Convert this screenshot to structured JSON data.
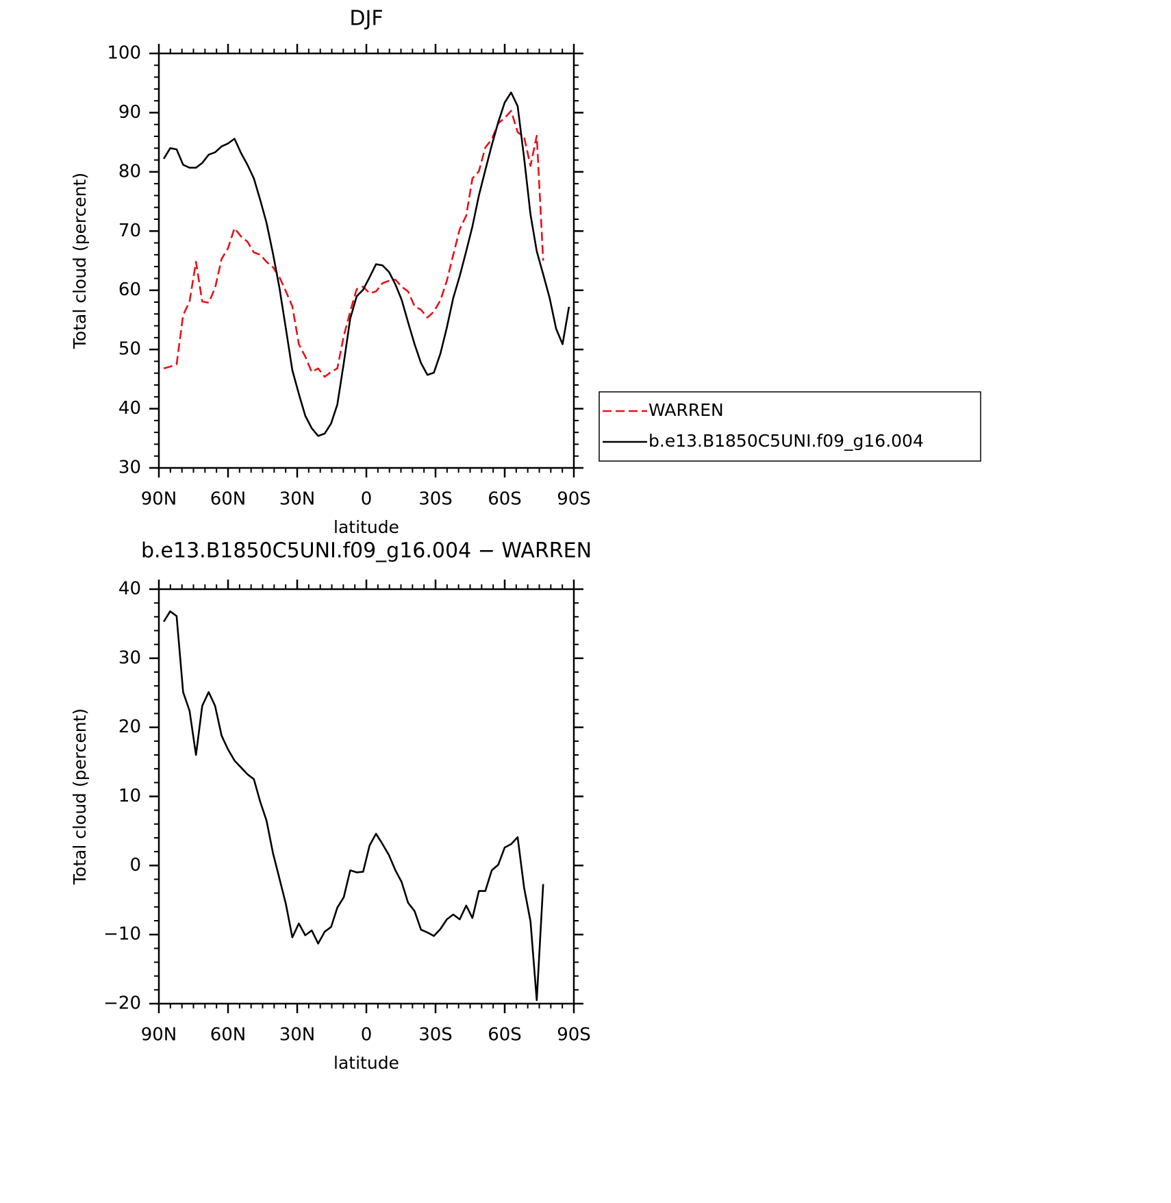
{
  "chart_data": [
    {
      "type": "line",
      "title": "DJF",
      "xlabel": "latitude",
      "ylabel": "Total cloud (percent)",
      "x": [
        87.9,
        85.1,
        82.3,
        79.5,
        76.7,
        73.9,
        71.2,
        68.4,
        65.6,
        62.8,
        60.0,
        57.2,
        54.4,
        51.6,
        48.8,
        46.0,
        43.3,
        40.5,
        37.7,
        34.9,
        32.1,
        29.3,
        26.5,
        23.7,
        20.9,
        18.1,
        15.3,
        12.6,
        9.8,
        7.0,
        4.2,
        1.4,
        -1.4,
        -4.2,
        -7.0,
        -9.8,
        -12.6,
        -15.3,
        -18.1,
        -20.9,
        -23.7,
        -26.5,
        -29.3,
        -32.1,
        -34.9,
        -37.7,
        -40.5,
        -43.3,
        -46.0,
        -48.8,
        -51.6,
        -54.4,
        -57.2,
        -60.0,
        -62.8,
        -65.6,
        -68.4,
        -71.2,
        -73.9,
        -76.7,
        -79.5,
        -82.3,
        -85.1,
        -87.9
      ],
      "xlim": [
        90,
        -90
      ],
      "xticks": [
        {
          "value": 90,
          "label": "90N"
        },
        {
          "value": 60,
          "label": "60N"
        },
        {
          "value": 30,
          "label": "30N"
        },
        0,
        {
          "value": -30,
          "label": "30S"
        },
        {
          "value": -60,
          "label": "60S"
        },
        {
          "value": -90,
          "label": "90S"
        }
      ],
      "ylim": [
        30,
        100
      ],
      "yticks": [
        30,
        40,
        50,
        60,
        70,
        80,
        90,
        100
      ],
      "legend": "right",
      "series": [
        {
          "name": "WARREN",
          "color": "#e8101a",
          "dash": true,
          "values": [
            46.8,
            47.1,
            47.5,
            55.8,
            58.1,
            64.8,
            58.1,
            57.9,
            60.4,
            65.3,
            67.1,
            70.5,
            69.1,
            68.2,
            66.4,
            66.0,
            64.8,
            63.9,
            62.2,
            59.8,
            57.3,
            50.9,
            48.8,
            46.2,
            46.8,
            45.4,
            46.2,
            46.8,
            52.3,
            56.4,
            60.2,
            60.6,
            59.5,
            59.8,
            61.2,
            61.6,
            61.8,
            60.6,
            59.8,
            57.3,
            56.7,
            55.4,
            56.4,
            58.3,
            61.6,
            66.0,
            70.3,
            72.6,
            78.9,
            80.1,
            84.1,
            85.5,
            88.2,
            89.1,
            90.3,
            86.7,
            85.9,
            81.0,
            86.1,
            65.0,
            null,
            null,
            null,
            null
          ]
        },
        {
          "name": "b.e13.B1850C5UNI.f09_g16.004",
          "color": "#000000",
          "dash": false,
          "values": [
            82.2,
            84.0,
            83.8,
            81.2,
            80.7,
            80.7,
            81.5,
            82.9,
            83.3,
            84.3,
            84.8,
            85.6,
            83.2,
            81.2,
            78.9,
            75.2,
            71.4,
            66.2,
            60.4,
            53.5,
            46.5,
            42.5,
            38.8,
            36.7,
            35.4,
            35.8,
            37.5,
            40.7,
            47.7,
            55.2,
            59.0,
            60.1,
            62.2,
            64.4,
            64.2,
            63.1,
            61.0,
            58.4,
            54.6,
            50.9,
            47.7,
            45.7,
            46.1,
            49.3,
            53.7,
            58.7,
            62.4,
            66.6,
            70.8,
            76.0,
            80.3,
            84.5,
            88.4,
            91.7,
            93.4,
            91.1,
            82.4,
            72.8,
            66.6,
            62.7,
            58.7,
            53.5,
            50.9,
            57.2
          ]
        }
      ]
    },
    {
      "type": "line",
      "title": "b.e13.B1850C5UNI.f09_g16.004 − WARREN",
      "xlabel": "latitude",
      "ylabel": "Total cloud (percent)",
      "x": [
        87.9,
        85.1,
        82.3,
        79.5,
        76.7,
        73.9,
        71.2,
        68.4,
        65.6,
        62.8,
        60.0,
        57.2,
        54.4,
        51.6,
        48.8,
        46.0,
        43.3,
        40.5,
        37.7,
        34.9,
        32.1,
        29.3,
        26.5,
        23.7,
        20.9,
        18.1,
        15.3,
        12.6,
        9.8,
        7.0,
        4.2,
        1.4,
        -1.4,
        -4.2,
        -7.0,
        -9.8,
        -12.6,
        -15.3,
        -18.1,
        -20.9,
        -23.7,
        -26.5,
        -29.3,
        -32.1,
        -34.9,
        -37.7,
        -40.5,
        -43.3,
        -46.0,
        -48.8,
        -51.6,
        -54.4,
        -57.2,
        -60.0,
        -62.8,
        -65.6,
        -68.4,
        -71.2,
        -73.9,
        -76.7
      ],
      "xlim": [
        90,
        -90
      ],
      "xticks": [
        {
          "value": 90,
          "label": "90N"
        },
        {
          "value": 60,
          "label": "60N"
        },
        {
          "value": 30,
          "label": "30N"
        },
        0,
        {
          "value": -30,
          "label": "30S"
        },
        {
          "value": -60,
          "label": "60S"
        },
        {
          "value": -90,
          "label": "90S"
        }
      ],
      "ylim": [
        -20,
        40
      ],
      "yticks": [
        {
          "value": -20,
          "label": "−20"
        },
        {
          "value": -10,
          "label": "−10"
        },
        0,
        10,
        20,
        30,
        40
      ],
      "series": [
        {
          "color": "#000000",
          "dash": false,
          "values": [
            35.3,
            36.8,
            36.1,
            25.1,
            22.4,
            16.0,
            23.1,
            25.1,
            23.1,
            18.8,
            16.8,
            15.2,
            14.2,
            13.2,
            12.5,
            9.2,
            6.5,
            1.8,
            -1.9,
            -5.6,
            -10.4,
            -8.4,
            -10.1,
            -9.4,
            -11.3,
            -9.6,
            -8.9,
            -6.1,
            -4.6,
            -0.7,
            -1.0,
            -0.9,
            2.9,
            4.6,
            3.1,
            1.5,
            -0.7,
            -2.4,
            -5.4,
            -6.6,
            -9.3,
            -9.7,
            -10.2,
            -9.2,
            -7.8,
            -7.1,
            -7.8,
            -5.8,
            -7.6,
            -3.7,
            -3.7,
            -0.7,
            0.1,
            2.6,
            3.1,
            4.1,
            -3.2,
            -8.1,
            -19.5,
            -2.7
          ]
        }
      ]
    }
  ]
}
